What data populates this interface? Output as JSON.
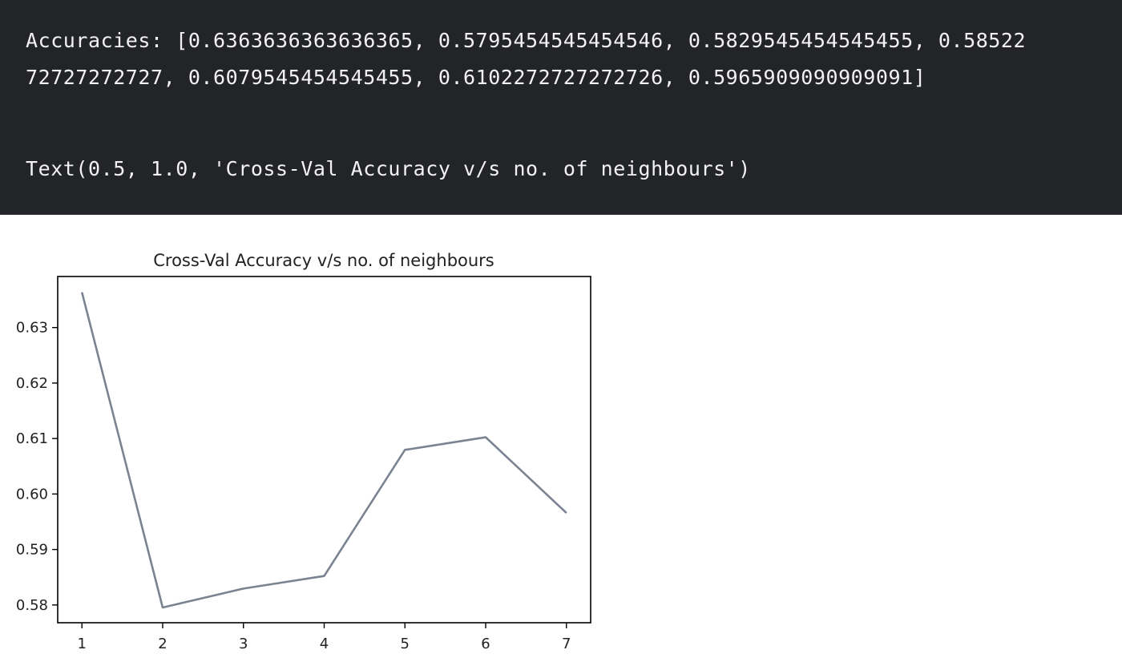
{
  "output": {
    "accuracies_line1": "Accuracies: [0.6363636363636365, 0.5795454545454546, 0.5829545454545455, 0.58522",
    "accuracies_line2": "72727272727, 0.6079545454545455, 0.6102272727272726, 0.5965909090909091]",
    "text_repr": "Text(0.5, 1.0, 'Cross-Val Accuracy v/s no. of neighbours')"
  },
  "colors": {
    "output_background": "#232428",
    "output_text": "#f2f2f2",
    "line": "#7a8390",
    "axes": "#000000"
  },
  "chart_data": {
    "type": "line",
    "title": "Cross-Val Accuracy v/s no. of neighbours",
    "xlabel": "",
    "ylabel": "",
    "x": [
      1,
      2,
      3,
      4,
      5,
      6,
      7
    ],
    "series": [
      {
        "values": [
          0.6363636363636365,
          0.5795454545454546,
          0.5829545454545455,
          0.5852272727272727,
          0.6079545454545455,
          0.6102272727272726,
          0.5965909090909091
        ]
      }
    ],
    "x_ticks": [
      "1",
      "2",
      "3",
      "4",
      "5",
      "6",
      "7"
    ],
    "y_ticks": [
      "0.58",
      "0.59",
      "0.60",
      "0.61",
      "0.62",
      "0.63"
    ],
    "x_tick_values": [
      1,
      2,
      3,
      4,
      5,
      6,
      7
    ],
    "y_tick_values": [
      0.58,
      0.59,
      0.6,
      0.61,
      0.62,
      0.63
    ],
    "xlim": [
      0.7,
      7.3
    ],
    "ylim": [
      0.5768,
      0.6392
    ],
    "grid": false,
    "legend": "none"
  }
}
